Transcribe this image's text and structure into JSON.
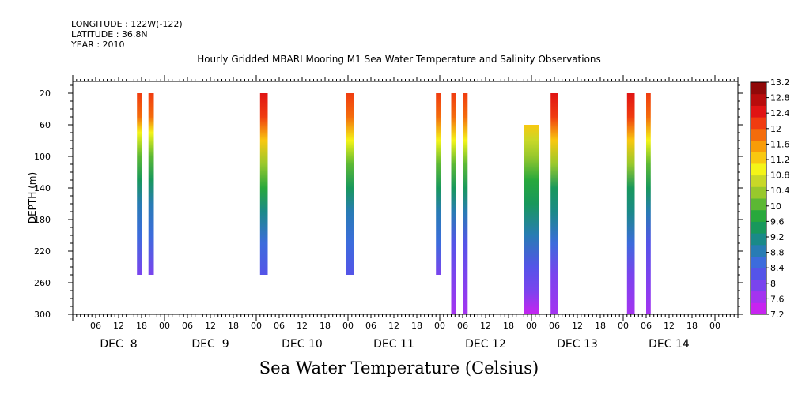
{
  "header": {
    "longitude": "LONGITUDE : 122W(-122)",
    "latitude": "LATITUDE : 36.8N",
    "year": "YEAR : 2010"
  },
  "chart_data": {
    "type": "heatmap",
    "title": "Hourly Gridded MBARI Mooring M1 Sea Water Temperature and Salinity Observations",
    "subtitle": "Sea Water Temperature (Celsius)",
    "ylabel": "DEPTH (m)",
    "xlabel": "",
    "y_axis": {
      "ticks": [
        20,
        60,
        100,
        140,
        180,
        220,
        260,
        300
      ],
      "range": [
        5,
        300
      ],
      "inverted": true,
      "unit": "m"
    },
    "x_axis": {
      "range_hours": [
        0,
        174
      ],
      "hour_ticks": [
        "06",
        "12",
        "18",
        "00",
        "06",
        "12",
        "18",
        "00",
        "06",
        "12",
        "18",
        "00",
        "06",
        "12",
        "18",
        "00",
        "06",
        "12",
        "18",
        "00",
        "06",
        "12",
        "18",
        "00",
        "06",
        "12",
        "18",
        "00"
      ],
      "day_labels": [
        {
          "label": "DEC  8",
          "hour": 12
        },
        {
          "label": "DEC  9",
          "hour": 36
        },
        {
          "label": "DEC 10",
          "hour": 60
        },
        {
          "label": "DEC 11",
          "hour": 84
        },
        {
          "label": "DEC 12",
          "hour": 108
        },
        {
          "label": "DEC 13",
          "hour": 132
        },
        {
          "label": "DEC 14",
          "hour": 156
        }
      ]
    },
    "colorbar": {
      "levels": [
        7.2,
        7.6,
        8,
        8.4,
        8.8,
        9.2,
        9.6,
        10,
        10.4,
        10.8,
        11.2,
        11.6,
        12,
        12.4,
        12.8,
        13.2
      ],
      "colors": [
        "#c724f0",
        "#a434f0",
        "#7a44ee",
        "#5454e8",
        "#3c6cdc",
        "#287cb4",
        "#1a8a88",
        "#18985c",
        "#28a83c",
        "#5cb834",
        "#98c82c",
        "#c8d828",
        "#f4f418",
        "#f8c810",
        "#f89c08",
        "#f46c0c",
        "#f03c10",
        "#e01414",
        "#b80c0c",
        "#900808"
      ]
    },
    "profiles": [
      {
        "time_start": 16.8,
        "time_end": 18.2,
        "depth_top": 20,
        "depth_bottom": 250,
        "temps": [
          [
            20,
            12.4
          ],
          [
            50,
            11.8
          ],
          [
            70,
            11.0
          ],
          [
            100,
            10.2
          ],
          [
            130,
            9.4
          ],
          [
            160,
            8.9
          ],
          [
            200,
            8.4
          ],
          [
            250,
            7.9
          ]
        ]
      },
      {
        "time_start": 19.8,
        "time_end": 21.2,
        "depth_top": 20,
        "depth_bottom": 250,
        "temps": [
          [
            20,
            12.4
          ],
          [
            50,
            11.8
          ],
          [
            70,
            11.0
          ],
          [
            100,
            10.2
          ],
          [
            130,
            9.4
          ],
          [
            160,
            8.9
          ],
          [
            200,
            8.4
          ],
          [
            250,
            7.9
          ]
        ]
      },
      {
        "time_start": 49.0,
        "time_end": 51.0,
        "depth_top": 20,
        "depth_bottom": 250,
        "temps": [
          [
            20,
            12.6
          ],
          [
            50,
            12.1
          ],
          [
            80,
            11.3
          ],
          [
            110,
            10.4
          ],
          [
            140,
            9.6
          ],
          [
            170,
            9.0
          ],
          [
            210,
            8.5
          ],
          [
            250,
            8.0
          ]
        ]
      },
      {
        "time_start": 71.5,
        "time_end": 73.5,
        "depth_top": 20,
        "depth_bottom": 250,
        "temps": [
          [
            20,
            12.3
          ],
          [
            50,
            11.8
          ],
          [
            80,
            11.0
          ],
          [
            110,
            10.2
          ],
          [
            140,
            9.5
          ],
          [
            170,
            8.9
          ],
          [
            210,
            8.5
          ],
          [
            250,
            8.0
          ]
        ]
      },
      {
        "time_start": 95.0,
        "time_end": 96.3,
        "depth_top": 20,
        "depth_bottom": 250,
        "temps": [
          [
            20,
            12.4
          ],
          [
            50,
            11.8
          ],
          [
            80,
            11.0
          ],
          [
            110,
            10.2
          ],
          [
            140,
            9.4
          ],
          [
            170,
            8.9
          ],
          [
            210,
            8.4
          ],
          [
            250,
            7.9
          ]
        ]
      },
      {
        "time_start": 99.0,
        "time_end": 100.3,
        "depth_top": 20,
        "depth_bottom": 300,
        "temps": [
          [
            20,
            12.4
          ],
          [
            50,
            11.8
          ],
          [
            80,
            11.0
          ],
          [
            110,
            10.2
          ],
          [
            140,
            9.4
          ],
          [
            170,
            8.9
          ],
          [
            210,
            8.3
          ],
          [
            250,
            7.8
          ],
          [
            300,
            7.4
          ]
        ]
      },
      {
        "time_start": 102.0,
        "time_end": 103.3,
        "depth_top": 20,
        "depth_bottom": 300,
        "temps": [
          [
            20,
            12.4
          ],
          [
            50,
            11.8
          ],
          [
            80,
            11.0
          ],
          [
            110,
            10.2
          ],
          [
            140,
            9.4
          ],
          [
            170,
            8.9
          ],
          [
            210,
            8.3
          ],
          [
            250,
            7.8
          ],
          [
            300,
            7.4
          ]
        ]
      },
      {
        "time_start": 118.0,
        "time_end": 122.0,
        "depth_top": 60,
        "depth_bottom": 300,
        "temps": [
          [
            60,
            11.3
          ],
          [
            80,
            10.8
          ],
          [
            100,
            10.3
          ],
          [
            130,
            9.8
          ],
          [
            160,
            9.3
          ],
          [
            200,
            8.7
          ],
          [
            240,
            8.1
          ],
          [
            270,
            7.7
          ],
          [
            300,
            7.3
          ]
        ]
      },
      {
        "time_start": 125.0,
        "time_end": 127.0,
        "depth_top": 20,
        "depth_bottom": 300,
        "temps": [
          [
            20,
            12.6
          ],
          [
            50,
            12.1
          ],
          [
            80,
            11.2
          ],
          [
            110,
            10.3
          ],
          [
            140,
            9.5
          ],
          [
            170,
            9.0
          ],
          [
            210,
            8.4
          ],
          [
            250,
            7.9
          ],
          [
            300,
            7.4
          ]
        ]
      },
      {
        "time_start": 145.0,
        "time_end": 147.0,
        "depth_top": 20,
        "depth_bottom": 300,
        "temps": [
          [
            20,
            12.6
          ],
          [
            50,
            12.1
          ],
          [
            80,
            11.2
          ],
          [
            110,
            10.3
          ],
          [
            140,
            9.5
          ],
          [
            170,
            9.0
          ],
          [
            210,
            8.4
          ],
          [
            250,
            7.9
          ],
          [
            300,
            7.4
          ]
        ]
      },
      {
        "time_start": 150.0,
        "time_end": 151.2,
        "depth_top": 20,
        "depth_bottom": 300,
        "temps": [
          [
            20,
            12.4
          ],
          [
            50,
            11.8
          ],
          [
            80,
            11.0
          ],
          [
            110,
            10.2
          ],
          [
            140,
            9.4
          ],
          [
            170,
            8.9
          ],
          [
            210,
            8.3
          ],
          [
            250,
            7.8
          ],
          [
            300,
            7.4
          ]
        ]
      }
    ]
  }
}
